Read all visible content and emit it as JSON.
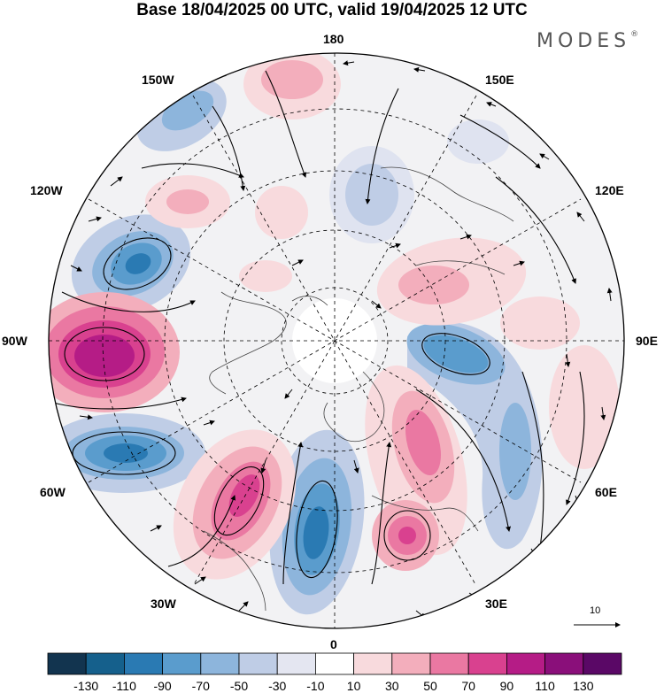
{
  "title": "Base 18/04/2025 00 UTC, valid 19/04/2025 12 UTC",
  "brand": {
    "name": "MODES",
    "mark": "®"
  },
  "longitude_labels": {
    "deg_180": "180",
    "deg_150E": "150E",
    "deg_120E": "120E",
    "deg_90E": "90E",
    "deg_60E": "60E",
    "deg_30E": "30E",
    "deg_0": "0",
    "deg_30W": "30W",
    "deg_60W": "60W",
    "deg_90W": "90W",
    "deg_120W": "120W",
    "deg_150W": "150W"
  },
  "vector_scale": {
    "label": "10"
  },
  "colorbar": {
    "ticks": [
      "-130",
      "-110",
      "-90",
      "-70",
      "-50",
      "-30",
      "-10",
      "10",
      "30",
      "50",
      "70",
      "90",
      "110",
      "130"
    ],
    "colors": [
      "#12344f",
      "#15608c",
      "#2a7ab3",
      "#5a9ccd",
      "#8db5dc",
      "#bfcde6",
      "#e4e6f1",
      "#ffffff",
      "#f8dadd",
      "#f3aebc",
      "#ea78a2",
      "#d9418f",
      "#b51c86",
      "#8a0f7a",
      "#5a0866"
    ]
  },
  "colors": {
    "background_land": "#ececec",
    "pole_cap": "#ffffff",
    "negative_strong": "#2a7ab3",
    "positive_strong": "#b51c86"
  }
}
